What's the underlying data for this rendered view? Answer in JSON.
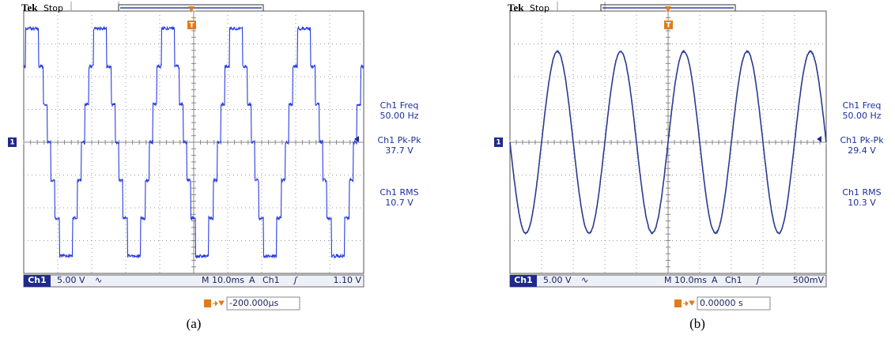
{
  "panels": [
    {
      "brand": "Tek",
      "status": "Stop",
      "channel_marker": "1",
      "trigger_marker": "T",
      "measurements": [
        {
          "label": "Ch1 Freq",
          "value": "50.00 Hz"
        },
        {
          "label": "Ch1 Pk-Pk",
          "value": "37.7 V"
        },
        {
          "label": "Ch1 RMS",
          "value": "10.7 V"
        }
      ],
      "bottom_bar": {
        "channel": "Ch1",
        "scale": "5.00 V",
        "coupling": "∿",
        "timebase": "M 10.0ms",
        "trigger_mode": "A",
        "trigger_source": "Ch1",
        "trigger_slope": "ʃ",
        "trigger_level": "1.10 V"
      },
      "trigger_position": "-200.000µs",
      "caption": "(a)"
    },
    {
      "brand": "Tek",
      "status": "Stop",
      "channel_marker": "1",
      "trigger_marker": "T",
      "measurements": [
        {
          "label": "Ch1 Freq",
          "value": "50.00 Hz"
        },
        {
          "label": "Ch1 Pk-Pk",
          "value": "29.4 V"
        },
        {
          "label": "Ch1 RMS",
          "value": "10.3 V"
        }
      ],
      "bottom_bar": {
        "channel": "Ch1",
        "scale": "5.00 V",
        "coupling": "∿",
        "timebase": "M 10.0ms",
        "trigger_mode": "A",
        "trigger_source": "Ch1",
        "trigger_slope": "ʃ",
        "trigger_level": "500mV"
      },
      "trigger_position": "0.00000 s",
      "caption": "(b)"
    }
  ]
}
